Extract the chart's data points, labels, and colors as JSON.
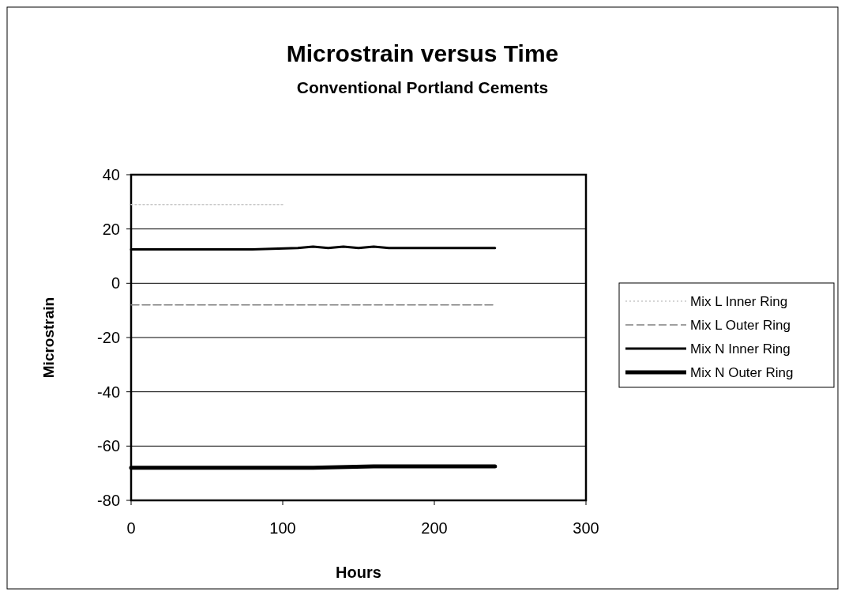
{
  "chart_data": {
    "type": "line",
    "title": "Microstrain versus Time",
    "subtitle": "Conventional Portland Cements",
    "xlabel": "Hours",
    "ylabel": "Microstrain",
    "xlim": [
      0,
      300
    ],
    "xticks": [
      0,
      100,
      200,
      300
    ],
    "ylim": [
      -80,
      40
    ],
    "yticks": [
      -80,
      -60,
      -40,
      -20,
      0,
      20,
      40
    ],
    "grid": "y",
    "legend": "right",
    "series": [
      {
        "name": "Mix L Inner Ring",
        "color": "#c8c8c8",
        "line_style": "dotted",
        "x": [
          0,
          20,
          40,
          60,
          80,
          100
        ],
        "values": [
          29,
          29,
          29,
          29,
          29,
          29
        ]
      },
      {
        "name": "Mix L Outer Ring",
        "color": "#808080",
        "line_style": "dashed",
        "x": [
          0,
          40,
          80,
          120,
          160,
          200,
          240
        ],
        "values": [
          -8,
          -8,
          -8,
          -8,
          -8,
          -8,
          -8
        ]
      },
      {
        "name": "Mix N Inner Ring",
        "color": "#000000",
        "line_style": "solid",
        "x": [
          0,
          40,
          80,
          110,
          120,
          130,
          140,
          150,
          160,
          170,
          180,
          200,
          220,
          240
        ],
        "values": [
          12.5,
          12.5,
          12.5,
          13,
          13.5,
          13,
          13.5,
          13,
          13.5,
          13,
          13,
          13,
          13,
          13
        ]
      },
      {
        "name": "Mix N Outer Ring",
        "color": "#000000",
        "line_style": "solid",
        "x": [
          0,
          40,
          80,
          120,
          160,
          200,
          240
        ],
        "values": [
          -68,
          -68,
          -68,
          -68,
          -67.5,
          -67.5,
          -67.5
        ]
      }
    ]
  }
}
